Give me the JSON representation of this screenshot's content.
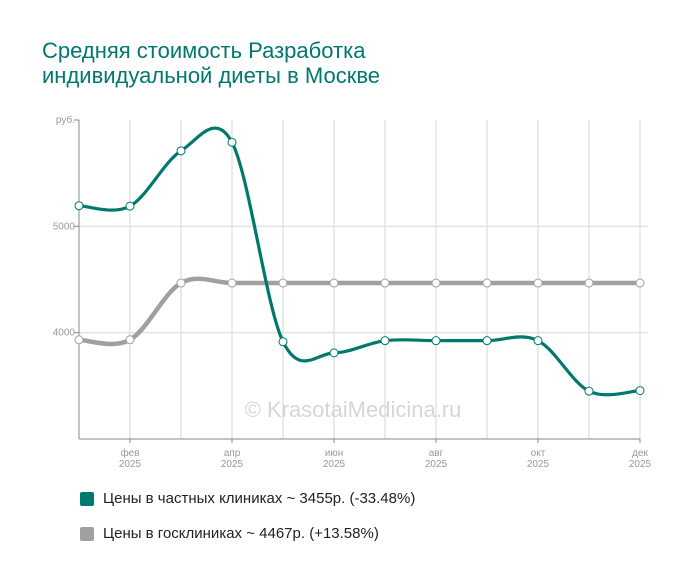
{
  "title_line1": "Средняя стоимость Разработка",
  "title_line2": "индивидуальной диеты в Москве",
  "watermark": "© KrasotaiMedicina.ru",
  "colors": {
    "private": "#00786e",
    "public": "#a0a0a0"
  },
  "chart_data": {
    "type": "line",
    "title": "Средняя стоимость Разработка индивидуальной диеты в Москве",
    "ylabel": "руб.",
    "ylim": [
      3000,
      6000
    ],
    "yticks": [
      {
        "v": 4000,
        "label": "4000"
      },
      {
        "v": 5000,
        "label": "5000"
      },
      {
        "v": 6000,
        "label": "руб."
      }
    ],
    "x": [
      "янв 2025",
      "фев 2025",
      "мар 2025",
      "апр 2025",
      "май 2025",
      "июн 2025",
      "июл 2025",
      "авг 2025",
      "сен 2025",
      "окт 2025",
      "ноя 2025",
      "дек 2025"
    ],
    "xticks": [
      {
        "i": 1,
        "m": "фев",
        "y": "2025"
      },
      {
        "i": 3,
        "m": "апр",
        "y": "2025"
      },
      {
        "i": 5,
        "m": "июн",
        "y": "2025"
      },
      {
        "i": 7,
        "m": "авг",
        "y": "2025"
      },
      {
        "i": 9,
        "m": "окт",
        "y": "2025"
      },
      {
        "i": 11,
        "m": "дек",
        "y": "2025"
      }
    ],
    "grid": true,
    "legend_position": "bottom",
    "series": [
      {
        "name": "Цены в частных клиниках",
        "color": "#00786e",
        "values": [
          5194,
          5190,
          5710,
          5790,
          3915,
          3810,
          3925,
          3925,
          3925,
          3925,
          3450,
          3455
        ]
      },
      {
        "name": "Цены в госклиниках",
        "color": "#a0a0a0",
        "values": [
          3933,
          3933,
          4467,
          4467,
          4467,
          4467,
          4467,
          4467,
          4467,
          4467,
          4467,
          4467
        ]
      }
    ]
  },
  "legend": [
    {
      "label": "Цены в частных клиниках ~ 3455р. (-33.48%)"
    },
    {
      "label": "Цены в госклиниках ~ 4467р. (+13.58%)"
    }
  ]
}
